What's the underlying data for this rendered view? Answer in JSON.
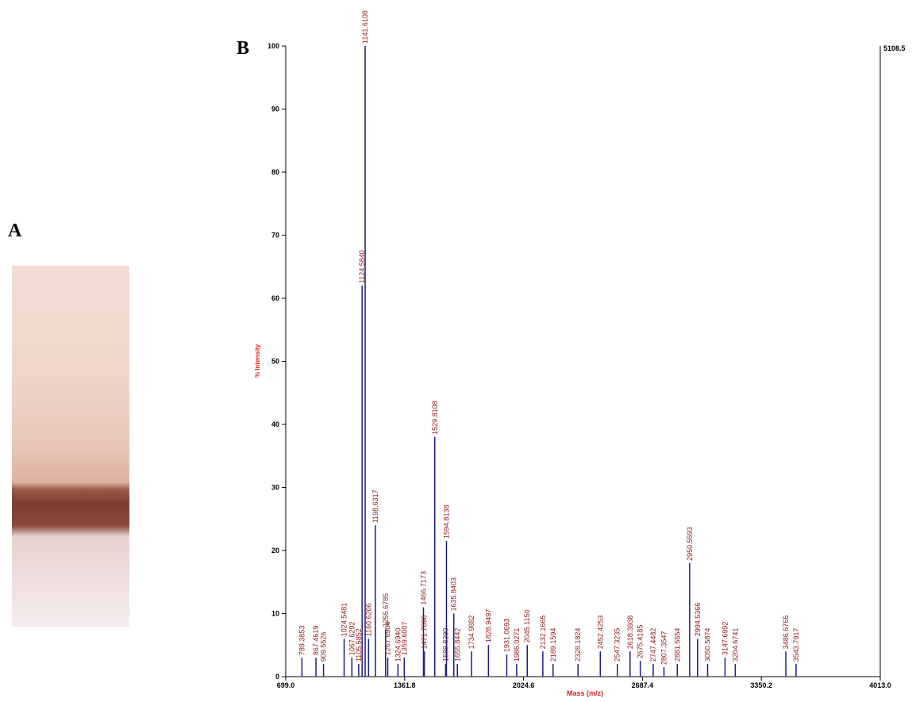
{
  "panel_labels": [
    "A",
    "B"
  ],
  "chart_data": {
    "type": "stem",
    "y_label": "% Intensity",
    "x_label": "Mass (m/z)",
    "max_intensity_label": "5108.5",
    "color": "#1c1c80",
    "label_color": "#8b1a1a",
    "x": [
      789.3853,
      867.4619,
      909.5526,
      1024.5481,
      1067.6292,
      1105.5852,
      1124.584,
      1141.6108,
      1160.6206,
      1198.6317,
      1255.6785,
      1267.6904,
      1324.694,
      1359.6007,
      1466.7173,
      1471.7898,
      1529.8108,
      1589.829,
      1594.8138,
      1635.8403,
      1655.8442,
      1734.9882,
      1828.9497,
      1931.0693,
      1986.0271,
      2045.115,
      2132.1665,
      2189.1594,
      2328.1824,
      2452.4253,
      2547.3235,
      2618.3938,
      2675.4185,
      2747.4482,
      2807.3547,
      2881.5654,
      2950.5593,
      2994.5366,
      3050.5874,
      3147.6992,
      3204.6741,
      3486.6765,
      3543.7917
    ],
    "x_labels": [
      "789.3853",
      "867.4619",
      "909.5526",
      "1024.5481",
      "1067.6292",
      "1105.5852",
      "1124.5840",
      "1141.6108",
      "1160.6206",
      "1198.6317",
      "1255.6785",
      "1267.6904",
      "1324.6940",
      "1359.6007",
      "1466.7173",
      "1471.7898",
      "1529.8108",
      "1589.8290",
      "1594.8138",
      "1635.8403",
      "1655.8442",
      "1734.9882",
      "1828.9497",
      "1931.0693",
      "1986.0271",
      "2045.1150",
      "2132.1665",
      "2189.1594",
      "2328.1824",
      "2452.4253",
      "2547.3235",
      "2618.3938",
      "2675.4185",
      "2747.4482",
      "2807.3547",
      "2881.5654",
      "2950.5593",
      "2994.5366",
      "3050.5874",
      "3147.6992",
      "3204.6741",
      "3486.6765",
      "3543.7917"
    ],
    "values": [
      3,
      3,
      2,
      6,
      3,
      2,
      62,
      100,
      6,
      24,
      7.5,
      3,
      2,
      3,
      11,
      4,
      38,
      2,
      21.5,
      10,
      2,
      4,
      5,
      3.5,
      2,
      5,
      4,
      2,
      2,
      4,
      2,
      4,
      2.5,
      2,
      1.5,
      2,
      18,
      6,
      2,
      3,
      2,
      4,
      2
    ],
    "xlim": [
      699.0,
      4013.0
    ],
    "xticks": [
      {
        "value": 699.0,
        "label": "699.0"
      },
      {
        "value": 1361.8,
        "label": "1361.8"
      },
      {
        "value": 2024.6,
        "label": "2024.6"
      },
      {
        "value": 2687.4,
        "label": "2687.4"
      },
      {
        "value": 3350.2,
        "label": "3350.2"
      },
      {
        "value": 4013.0,
        "label": "4013.0"
      }
    ],
    "ylim": [
      0,
      100
    ],
    "yticks": [
      0,
      10,
      20,
      30,
      40,
      50,
      60,
      70,
      80,
      90,
      100
    ]
  }
}
